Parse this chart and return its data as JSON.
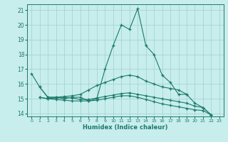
{
  "xlabel": "Humidex (Indice chaleur)",
  "xlim": [
    -0.5,
    23.5
  ],
  "ylim": [
    13.8,
    21.4
  ],
  "yticks": [
    14,
    15,
    16,
    17,
    18,
    19,
    20,
    21
  ],
  "xticks": [
    0,
    1,
    2,
    3,
    4,
    5,
    6,
    7,
    8,
    9,
    10,
    11,
    12,
    13,
    14,
    15,
    16,
    17,
    18,
    19,
    20,
    21,
    22,
    23
  ],
  "background_color": "#c8eded",
  "grid_color": "#a0d0d0",
  "line_color": "#1a7a6a",
  "series": [
    {
      "x": [
        0,
        1,
        2,
        3,
        4,
        5,
        6,
        7,
        8,
        9,
        10,
        11,
        12,
        13,
        14,
        15,
        16,
        17,
        18,
        19,
        20,
        21,
        22,
        23
      ],
      "y": [
        16.7,
        15.8,
        15.1,
        15.1,
        15.0,
        15.1,
        15.1,
        14.85,
        15.0,
        17.0,
        18.6,
        20.0,
        19.7,
        21.1,
        18.6,
        18.0,
        16.6,
        16.1,
        15.3,
        15.3,
        14.7,
        14.4,
        13.9,
        null
      ]
    },
    {
      "x": [
        0,
        1,
        2,
        3,
        4,
        5,
        6,
        7,
        8,
        9,
        10,
        11,
        12,
        13,
        14,
        15,
        16,
        17,
        18,
        19,
        20,
        21,
        22,
        23
      ],
      "y": [
        null,
        15.8,
        15.1,
        15.1,
        15.15,
        15.2,
        15.3,
        15.6,
        15.9,
        16.1,
        16.3,
        16.5,
        16.6,
        16.5,
        16.2,
        16.0,
        15.8,
        15.7,
        15.6,
        15.3,
        null,
        null,
        null,
        null
      ]
    },
    {
      "x": [
        0,
        1,
        2,
        3,
        4,
        5,
        6,
        7,
        8,
        9,
        10,
        11,
        12,
        13,
        14,
        15,
        16,
        17,
        18,
        19,
        20,
        21,
        22,
        23
      ],
      "y": [
        null,
        15.1,
        15.0,
        15.05,
        15.1,
        15.05,
        14.95,
        14.95,
        15.05,
        15.15,
        15.25,
        15.35,
        15.4,
        15.3,
        15.2,
        15.1,
        15.0,
        14.9,
        14.8,
        14.7,
        14.5,
        14.4,
        13.9,
        null
      ]
    },
    {
      "x": [
        0,
        1,
        2,
        3,
        4,
        5,
        6,
        7,
        8,
        9,
        10,
        11,
        12,
        13,
        14,
        15,
        16,
        17,
        18,
        19,
        20,
        21,
        22,
        23
      ],
      "y": [
        null,
        15.1,
        15.0,
        14.95,
        14.9,
        14.85,
        14.85,
        14.85,
        14.9,
        15.0,
        15.1,
        15.2,
        15.2,
        15.1,
        14.95,
        14.8,
        14.65,
        14.55,
        14.45,
        14.35,
        14.25,
        14.2,
        13.9,
        null
      ]
    }
  ]
}
